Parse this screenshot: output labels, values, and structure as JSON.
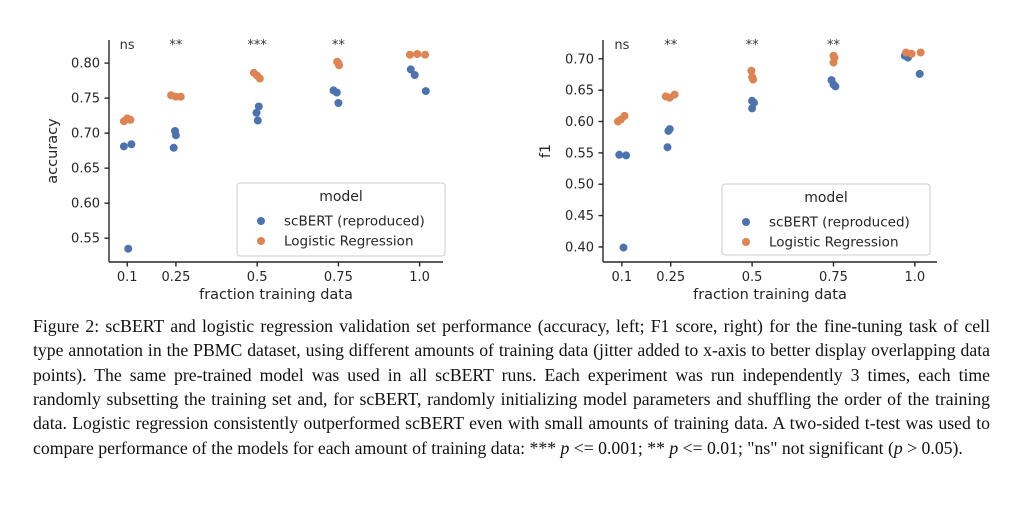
{
  "figure": {
    "caption_segments": [
      {
        "t": "Figure 2:  scBERT and logistic regression validation set performance (accuracy, left; F1 score, right) for the fine-tuning task of cell type annotation in the PBMC dataset, using different amounts of training data (jitter added to x-axis to better display overlapping data points). The same pre-trained model was used in all scBERT runs. Each experiment was run independently 3 times, each time randomly subsetting the training set and, for scBERT, randomly initializing model parameters and shuffling the order of the training data. Logistic regression consistently outperformed scBERT even with small amounts of training data. A two-sided t-test was used to compare performance of the models for each amount of training data: *** ",
        "i": false
      },
      {
        "t": "p",
        "i": true
      },
      {
        "t": " <= 0.001; ** ",
        "i": false
      },
      {
        "t": "p",
        "i": true
      },
      {
        "t": " <= 0.01; \"ns\" not significant (",
        "i": false
      },
      {
        "t": "p",
        "i": true
      },
      {
        "t": " > 0.05).",
        "i": false
      }
    ]
  },
  "colors": {
    "scbert_blue": "#4C72B0",
    "logreg_orange": "#DD8452",
    "axis_text": "#262626",
    "spine": "#262626",
    "legend_border": "#cccccc"
  },
  "chart_data": [
    {
      "type": "scatter",
      "name": "accuracy-plot",
      "xlabel": "fraction training data",
      "ylabel": "accuracy",
      "xlim": [
        0.044,
        1.072
      ],
      "ylim": [
        0.516,
        0.833
      ],
      "x_ticks": [
        0.1,
        0.25,
        0.5,
        0.75,
        1.0
      ],
      "x_tick_labels": [
        "0.1",
        "0.25",
        "0.5",
        "0.75",
        "1.0"
      ],
      "y_ticks": [
        0.55,
        0.6,
        0.65,
        0.7,
        0.75,
        0.8
      ],
      "y_tick_labels": [
        "0.55",
        "0.60",
        "0.65",
        "0.70",
        "0.75",
        "0.80"
      ],
      "grid": false,
      "significance": [
        {
          "x": 0.1,
          "label": "ns"
        },
        {
          "x": 0.25,
          "label": "**"
        },
        {
          "x": 0.5,
          "label": "***"
        },
        {
          "x": 0.75,
          "label": "**"
        }
      ],
      "legend": {
        "title": "model",
        "position": "lower right"
      },
      "series": [
        {
          "name": "scBERT (reproduced)",
          "color": "#4C72B0",
          "points": [
            [
              0.09,
              0.681
            ],
            [
              0.113,
              0.684
            ],
            [
              0.103,
              0.535
            ],
            [
              0.247,
              0.703
            ],
            [
              0.25,
              0.697
            ],
            [
              0.243,
              0.679
            ],
            [
              0.505,
              0.738
            ],
            [
              0.498,
              0.729
            ],
            [
              0.502,
              0.718
            ],
            [
              0.735,
              0.761
            ],
            [
              0.745,
              0.758
            ],
            [
              0.75,
              0.743
            ],
            [
              0.973,
              0.791
            ],
            [
              0.985,
              0.783
            ],
            [
              1.019,
              0.76
            ]
          ]
        },
        {
          "name": "Logistic Regression",
          "color": "#DD8452",
          "points": [
            [
              0.09,
              0.717
            ],
            [
              0.1,
              0.721
            ],
            [
              0.11,
              0.719
            ],
            [
              0.235,
              0.754
            ],
            [
              0.25,
              0.752
            ],
            [
              0.265,
              0.752
            ],
            [
              0.49,
              0.786
            ],
            [
              0.5,
              0.782
            ],
            [
              0.508,
              0.778
            ],
            [
              0.746,
              0.802
            ],
            [
              0.75,
              0.8
            ],
            [
              0.752,
              0.797
            ],
            [
              0.97,
              0.812
            ],
            [
              0.993,
              0.813
            ],
            [
              1.017,
              0.812
            ]
          ]
        }
      ]
    },
    {
      "type": "scatter",
      "name": "f1-plot",
      "xlabel": "fraction training data",
      "ylabel": "f1",
      "xlim": [
        0.042,
        1.068
      ],
      "ylim": [
        0.376,
        0.73
      ],
      "x_ticks": [
        0.1,
        0.25,
        0.5,
        0.75,
        1.0
      ],
      "x_tick_labels": [
        "0.1",
        "0.25",
        "0.5",
        "0.75",
        "1.0"
      ],
      "y_ticks": [
        0.4,
        0.45,
        0.5,
        0.55,
        0.6,
        0.65,
        0.7
      ],
      "y_tick_labels": [
        "0.40",
        "0.45",
        "0.50",
        "0.55",
        "0.60",
        "0.65",
        "0.70"
      ],
      "grid": false,
      "significance": [
        {
          "x": 0.1,
          "label": "ns"
        },
        {
          "x": 0.25,
          "label": "**"
        },
        {
          "x": 0.5,
          "label": "**"
        },
        {
          "x": 0.75,
          "label": "**"
        }
      ],
      "legend": {
        "title": "model",
        "position": "lower right"
      },
      "series": [
        {
          "name": "scBERT (reproduced)",
          "color": "#4C72B0",
          "points": [
            [
              0.092,
              0.547
            ],
            [
              0.113,
              0.546
            ],
            [
              0.105,
              0.399
            ],
            [
              0.247,
              0.588
            ],
            [
              0.243,
              0.585
            ],
            [
              0.24,
              0.559
            ],
            [
              0.5,
              0.633
            ],
            [
              0.506,
              0.63
            ],
            [
              0.5,
              0.621
            ],
            [
              0.744,
              0.666
            ],
            [
              0.75,
              0.659
            ],
            [
              0.756,
              0.656
            ],
            [
              0.969,
              0.705
            ],
            [
              0.979,
              0.702
            ],
            [
              1.015,
              0.676
            ]
          ]
        },
        {
          "name": "Logistic Regression",
          "color": "#DD8452",
          "points": [
            [
              0.088,
              0.6
            ],
            [
              0.097,
              0.603
            ],
            [
              0.108,
              0.609
            ],
            [
              0.235,
              0.64
            ],
            [
              0.247,
              0.638
            ],
            [
              0.262,
              0.643
            ],
            [
              0.498,
              0.681
            ],
            [
              0.5,
              0.671
            ],
            [
              0.503,
              0.667
            ],
            [
              0.75,
              0.705
            ],
            [
              0.753,
              0.702
            ],
            [
              0.75,
              0.694
            ],
            [
              0.973,
              0.71
            ],
            [
              0.99,
              0.708
            ],
            [
              1.018,
              0.71
            ]
          ]
        }
      ]
    }
  ]
}
